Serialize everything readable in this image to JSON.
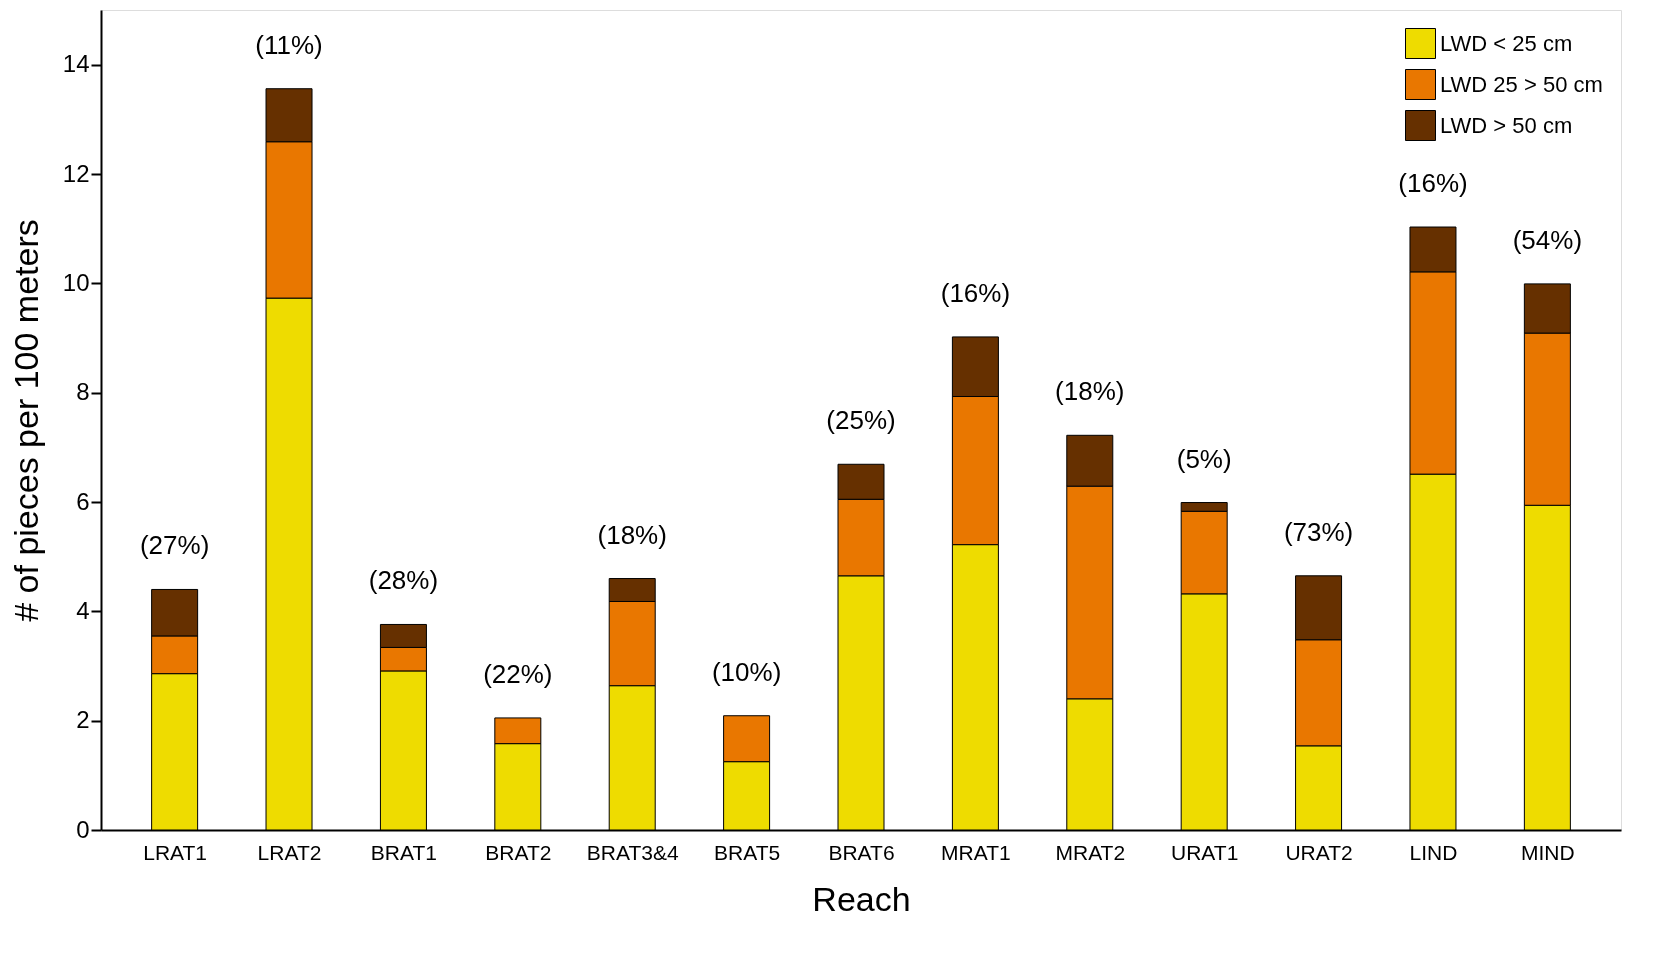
{
  "chart_data": {
    "type": "bar",
    "stacked": true,
    "xlabel": "Reach",
    "ylabel": "# of pieces per 100 meters",
    "categories": [
      "LRAT1",
      "LRAT2",
      "BRAT1",
      "BRAT2",
      "BRAT3&4",
      "BRAT5",
      "BRAT6",
      "MRAT1",
      "MRAT2",
      "URAT1",
      "URAT2",
      "LIND",
      "MIND"
    ],
    "series": [
      {
        "name": "LWD < 25 cm",
        "color": "#eedc00",
        "values": [
          2.86,
          9.73,
          2.91,
          1.58,
          2.64,
          1.25,
          4.65,
          5.22,
          2.4,
          4.32,
          1.54,
          6.51,
          5.94
        ]
      },
      {
        "name": "LWD 25 > 50 cm",
        "color": "#e97700",
        "values": [
          0.69,
          2.86,
          0.43,
          0.47,
          1.54,
          0.84,
          1.4,
          2.71,
          3.89,
          1.51,
          1.94,
          3.7,
          3.15
        ]
      },
      {
        "name": "LWD > 50 cm",
        "color": "#663000",
        "values": [
          0.85,
          0.97,
          0.42,
          null,
          0.42,
          null,
          0.64,
          1.09,
          0.93,
          0.16,
          1.17,
          0.82,
          0.9
        ]
      }
    ],
    "ylim": [
      0,
      15
    ],
    "yticks": [
      0,
      2,
      4,
      6,
      8,
      10,
      12,
      14
    ],
    "grid": false,
    "legend": "top right",
    "annotations": [
      "(27%)",
      "(11%)",
      "(28%)",
      "(22%)",
      "(18%)",
      "(10%)",
      "(25%)",
      "(16%)",
      "(18%)",
      "(5%)",
      "(73%)",
      "(16%)",
      "(54%)"
    ]
  }
}
